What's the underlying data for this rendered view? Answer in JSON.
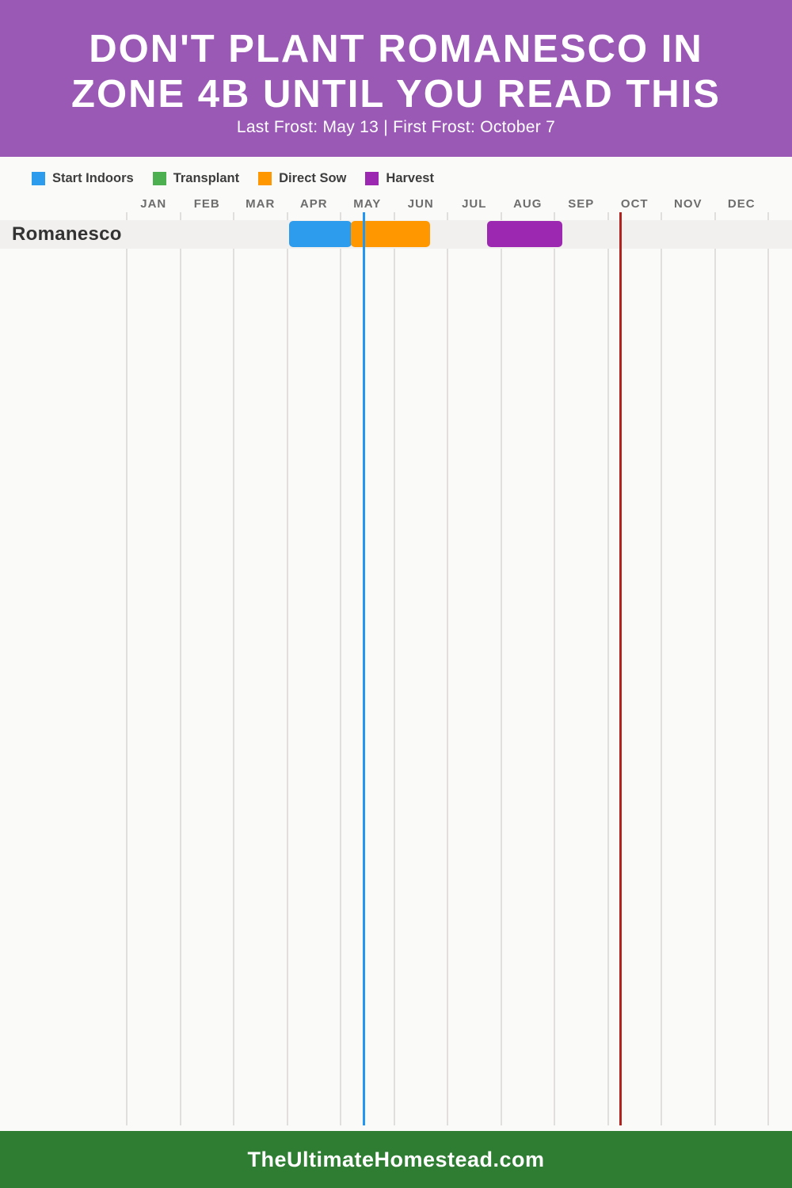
{
  "header": {
    "title_line1": "DON'T PLANT ROMANESCO IN",
    "title_line2": "ZONE 4B UNTIL YOU READ THIS",
    "subtitle": "Last Frost: May 13 | First Frost: October 7",
    "bg_color": "#9b59b6",
    "text_color": "#ffffff"
  },
  "legend": {
    "items": [
      {
        "label": "Start Indoors",
        "color": "#2d9cec"
      },
      {
        "label": "Transplant",
        "color": "#4caf50"
      },
      {
        "label": "Direct Sow",
        "color": "#ff9800"
      },
      {
        "label": "Harvest",
        "color": "#9c27b0"
      }
    ]
  },
  "chart_data": {
    "type": "bar",
    "subtype": "gantt-planting-calendar",
    "title": "Romanesco planting calendar for Zone 4B",
    "months": [
      "JAN",
      "FEB",
      "MAR",
      "APR",
      "MAY",
      "JUN",
      "JUL",
      "AUG",
      "SEP",
      "OCT",
      "NOV",
      "DEC"
    ],
    "x_axis": {
      "range_months": [
        0,
        12
      ],
      "grid": true
    },
    "rows": [
      {
        "label": "Romanesco",
        "bars": [
          {
            "task": "Start Indoors",
            "color": "#2d9cec",
            "start_month": 3.04,
            "end_month": 4.21,
            "approx_dates": "Apr 1 – May 6"
          },
          {
            "task": "Direct Sow",
            "color": "#ff9800",
            "start_month": 4.19,
            "end_month": 5.67,
            "approx_dates": "May 6 – Jun 20"
          },
          {
            "task": "Harvest",
            "color": "#9c27b0",
            "start_month": 6.74,
            "end_month": 8.15,
            "approx_dates": "Jul 23 – Sep 4"
          }
        ]
      }
    ],
    "frost_lines": [
      {
        "name": "last-frost",
        "date": "May 13",
        "month_position": 4.44,
        "color": "#2196f3"
      },
      {
        "name": "first-frost",
        "date": "October 7",
        "month_position": 9.23,
        "color": "#b3221e"
      }
    ]
  },
  "footer": {
    "text": "TheUltimateHomestead.com",
    "bg_color": "#2e7d32",
    "text_color": "#ffffff"
  }
}
